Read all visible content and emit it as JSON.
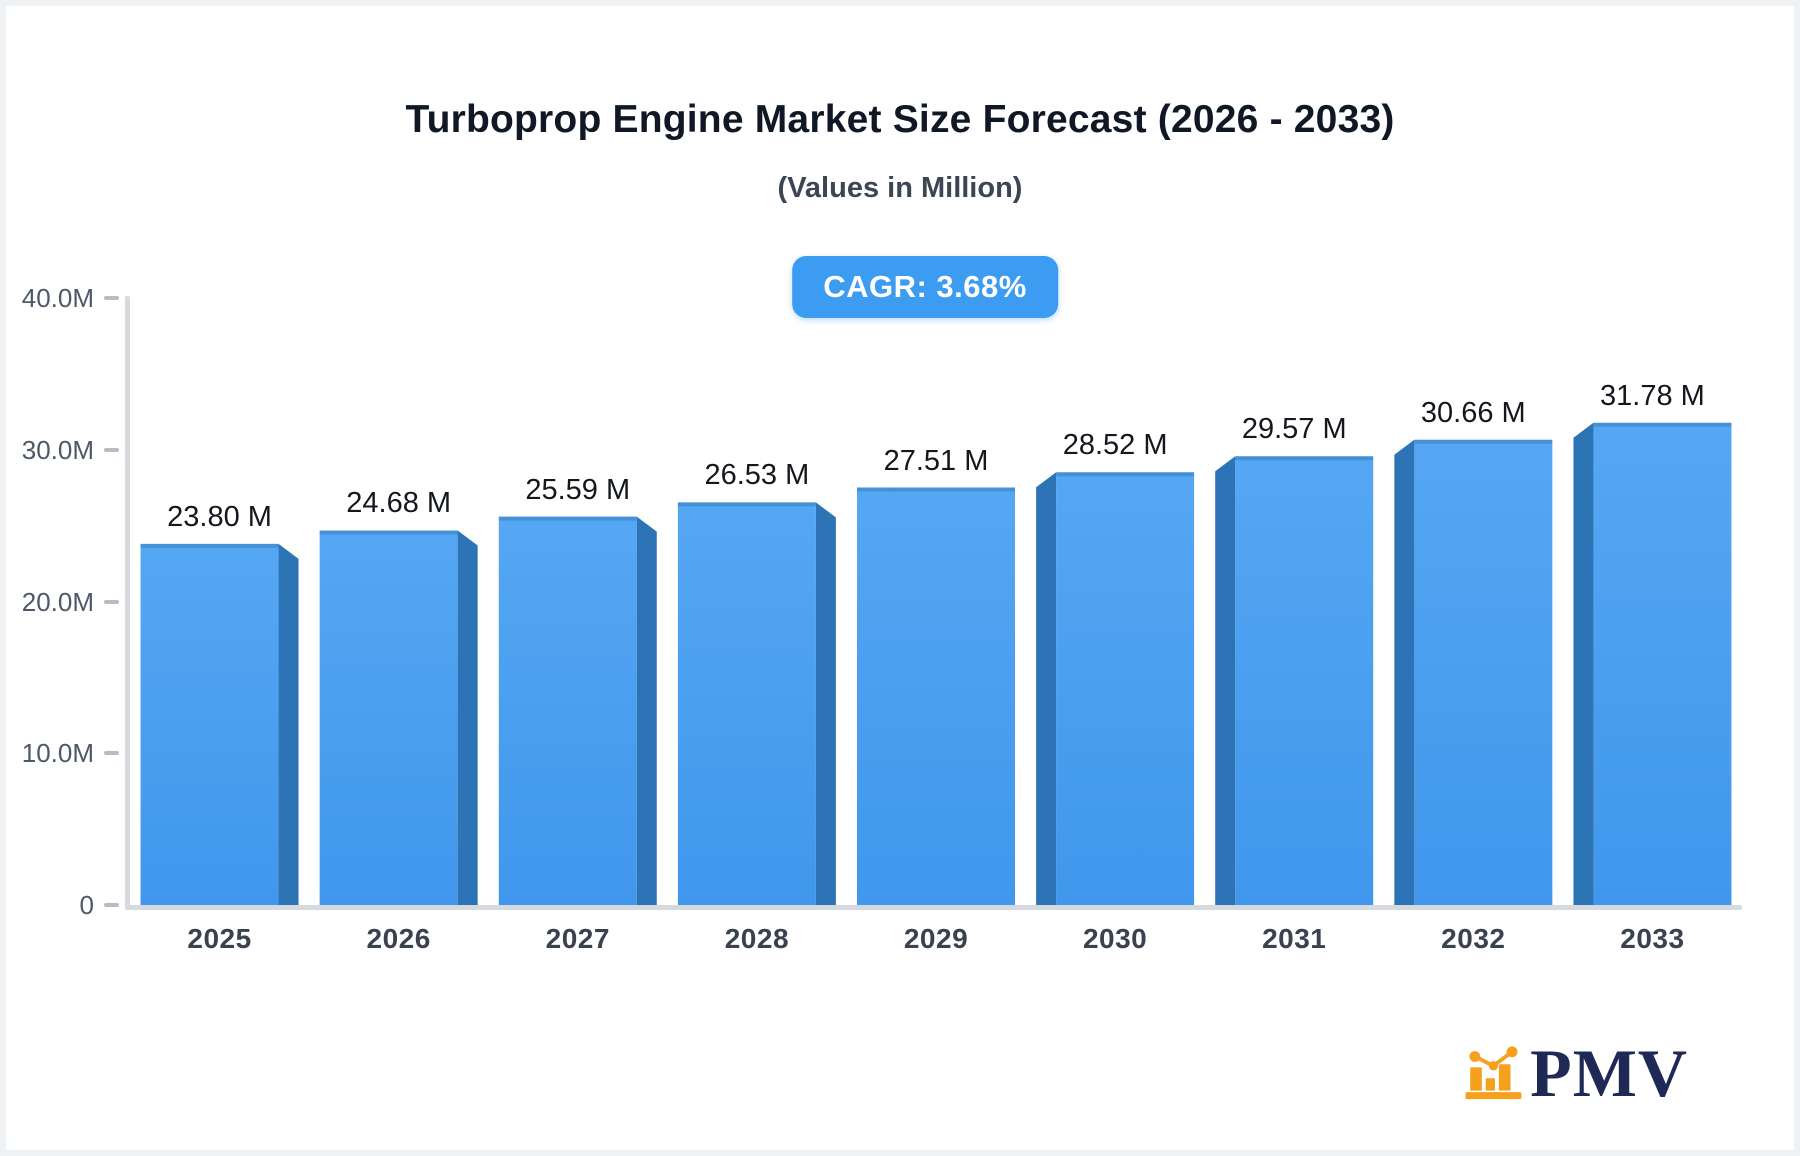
{
  "page": {
    "title": "Turboprop Engine Market Size Forecast (2026 - 2033)",
    "subtitle": "(Values in Million)",
    "cagr_badge": "CAGR: 3.68%"
  },
  "chart_data": {
    "type": "bar",
    "title": "Turboprop Engine Market Size Forecast (2026 - 2033)",
    "subtitle": "(Values in Million)",
    "annotation": "CAGR: 3.68%",
    "categories": [
      "2025",
      "2026",
      "2027",
      "2028",
      "2029",
      "2030",
      "2031",
      "2032",
      "2033"
    ],
    "values": [
      23.8,
      24.68,
      25.59,
      26.53,
      27.51,
      28.52,
      29.57,
      30.66,
      31.78
    ],
    "value_labels": [
      "23.80 M",
      "24.68 M",
      "25.59 M",
      "26.53 M",
      "27.51 M",
      "28.52 M",
      "29.57 M",
      "30.66 M",
      "31.78 M"
    ],
    "xlabel": "",
    "ylabel": "",
    "ylim": [
      0,
      40
    ],
    "yticks": [
      {
        "value": 0,
        "label": "0"
      },
      {
        "value": 10,
        "label": "10.0M"
      },
      {
        "value": 20,
        "label": "20.0M"
      },
      {
        "value": 30,
        "label": "30.0M"
      },
      {
        "value": 40,
        "label": "40.0M"
      }
    ],
    "grid": false,
    "legend_position": "none",
    "colors": {
      "bar_face_top": "#55a7f2",
      "bar_face_bottom": "#4097ec",
      "bar_side": "#2c74b5",
      "axis_line": "#d6dade",
      "tick_text": "#4d5868",
      "badge_blue": "#3b9cf1"
    }
  },
  "logo": {
    "text": "PMV",
    "icon": "bar-chart-logo-icon",
    "text_color": "#1e2a55",
    "icon_color": "#f5a11d"
  }
}
